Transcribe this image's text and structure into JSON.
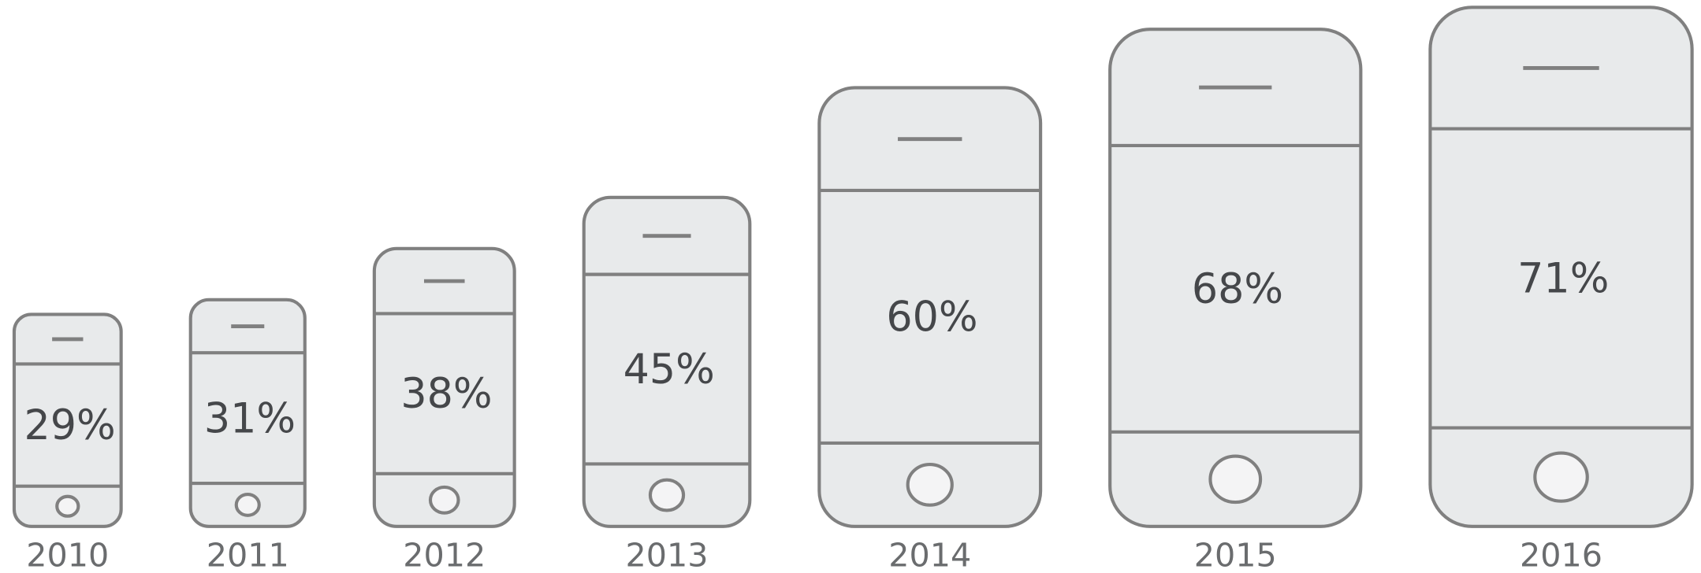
{
  "chart_data": {
    "type": "pictograph",
    "categories": [
      "2010",
      "2011",
      "2012",
      "2013",
      "2014",
      "2015",
      "2016"
    ],
    "values": [
      29,
      31,
      38,
      45,
      60,
      68,
      71
    ],
    "value_labels": [
      "29%",
      "31%",
      "38%",
      "45%",
      "60%",
      "68%",
      "71%"
    ],
    "color": "#e8eaeb"
  }
}
